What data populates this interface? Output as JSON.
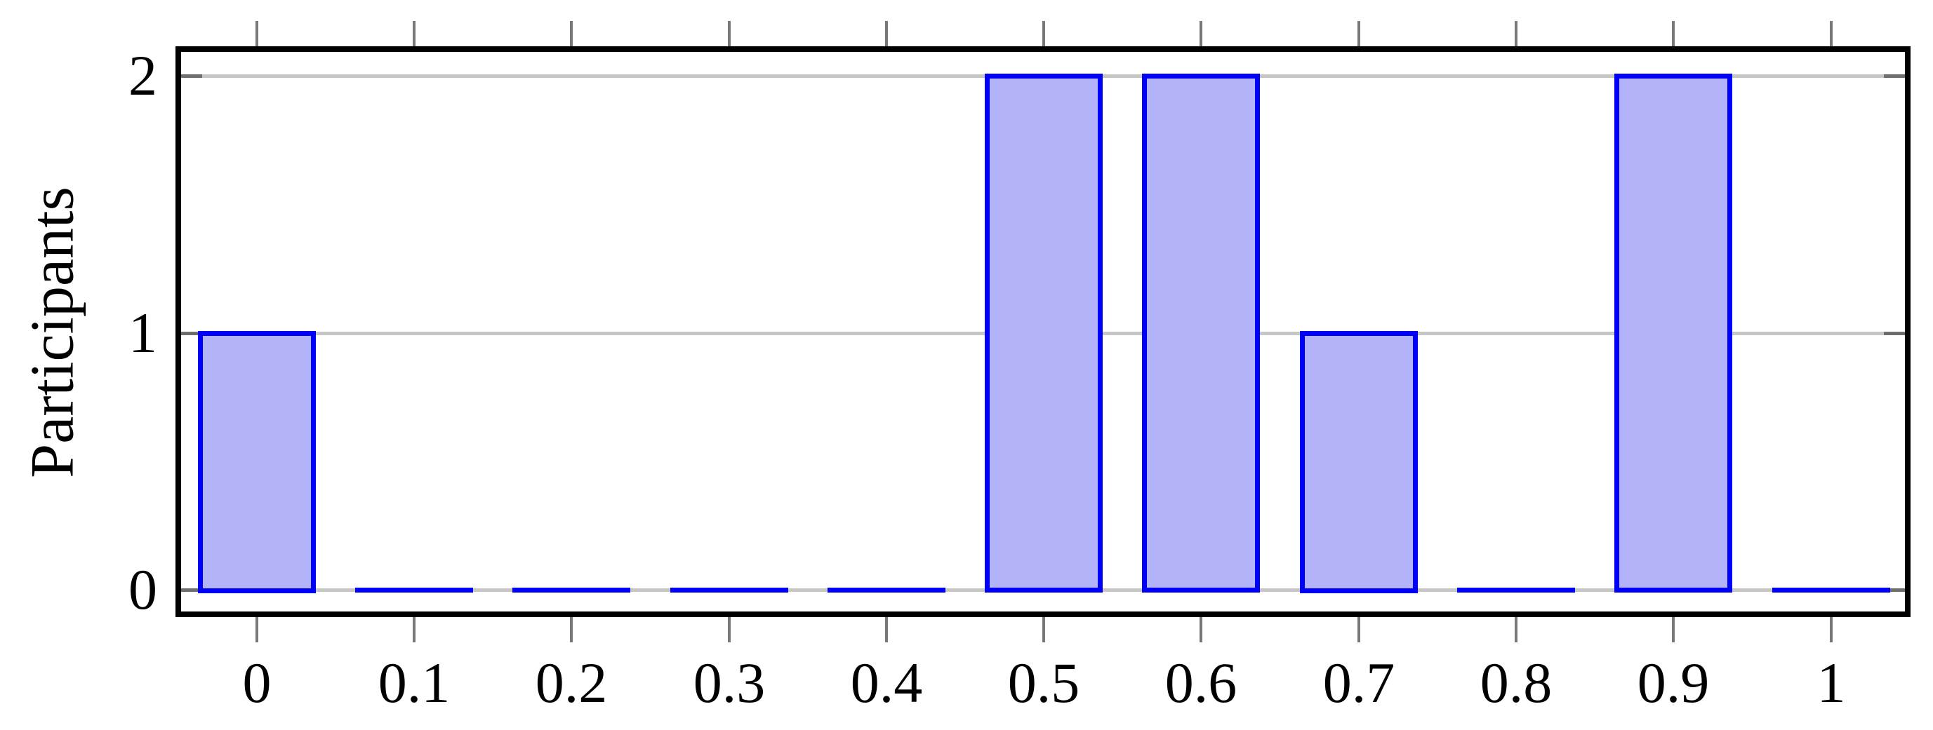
{
  "chart_data": {
    "type": "bar",
    "title": "",
    "xlabel": "",
    "ylabel": "Participants",
    "categories": [
      "0",
      "0.1",
      "0.2",
      "0.3",
      "0.4",
      "0.5",
      "0.6",
      "0.7",
      "0.8",
      "0.9",
      "1"
    ],
    "x": [
      0,
      0.1,
      0.2,
      0.3,
      0.4,
      0.5,
      0.6,
      0.7,
      0.8,
      0.9,
      1
    ],
    "values": [
      1,
      0,
      0,
      0,
      0,
      2,
      2,
      1,
      0,
      2,
      0
    ],
    "ytick_labels": [
      "0",
      "1",
      "2"
    ],
    "yticks": [
      0,
      1,
      2
    ],
    "xlim": [
      -0.048,
      1.047
    ],
    "ylim": [
      -0.084,
      2.093
    ],
    "bar_width": 0.075,
    "grid": true,
    "legend": false,
    "colors": {
      "bar_fill": "#b3b3fa",
      "bar_border": "#0000f8",
      "gridline": "#c6c6c6",
      "tick_outside": "#787878",
      "tick_inside": "#6e6e6e",
      "axis_frame": "#000000",
      "text": "#000000"
    }
  }
}
